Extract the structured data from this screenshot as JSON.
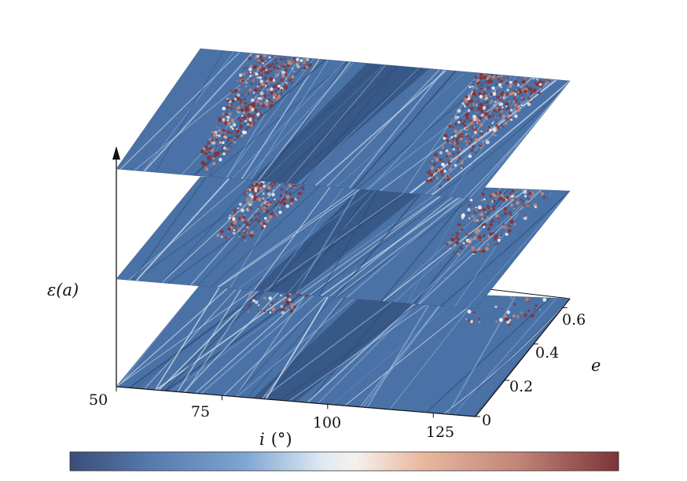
{
  "chart_data": {
    "type": "heatmap",
    "plot_kind": "stacked 3D heatmap layers",
    "layers": 3,
    "x_axis": {
      "label_var": "i",
      "label_unit": "(°)",
      "ticks": [
        "50",
        "75",
        "100",
        "125"
      ],
      "range": [
        50,
        135
      ]
    },
    "e_axis": {
      "label": "e",
      "ticks": [
        "0",
        "0.2",
        "0.4",
        "0.6"
      ],
      "range": [
        0,
        0.65
      ]
    },
    "vertical_axis": {
      "label": "ε(a)"
    },
    "colorbar": {
      "orientation": "horizontal",
      "position": "bottom",
      "colormap": "diverging blue-white-red",
      "colors": [
        "#3b4d78",
        "#5577aa",
        "#7fa6d3",
        "#dfe9f3",
        "#f4f1ee",
        "#e9b9a0",
        "#c08477",
        "#7c3338"
      ],
      "ticks_shown": false
    },
    "features": {
      "base_color": "#4a72a6",
      "dark_color": "#2a4470",
      "chaotic_color": "#8b2f2f",
      "chaotic_regions_i": [
        [
          65,
          80
        ],
        [
          112,
          130
        ]
      ],
      "layer_chaos_intensity": [
        1.0,
        0.6,
        0.25
      ]
    }
  }
}
